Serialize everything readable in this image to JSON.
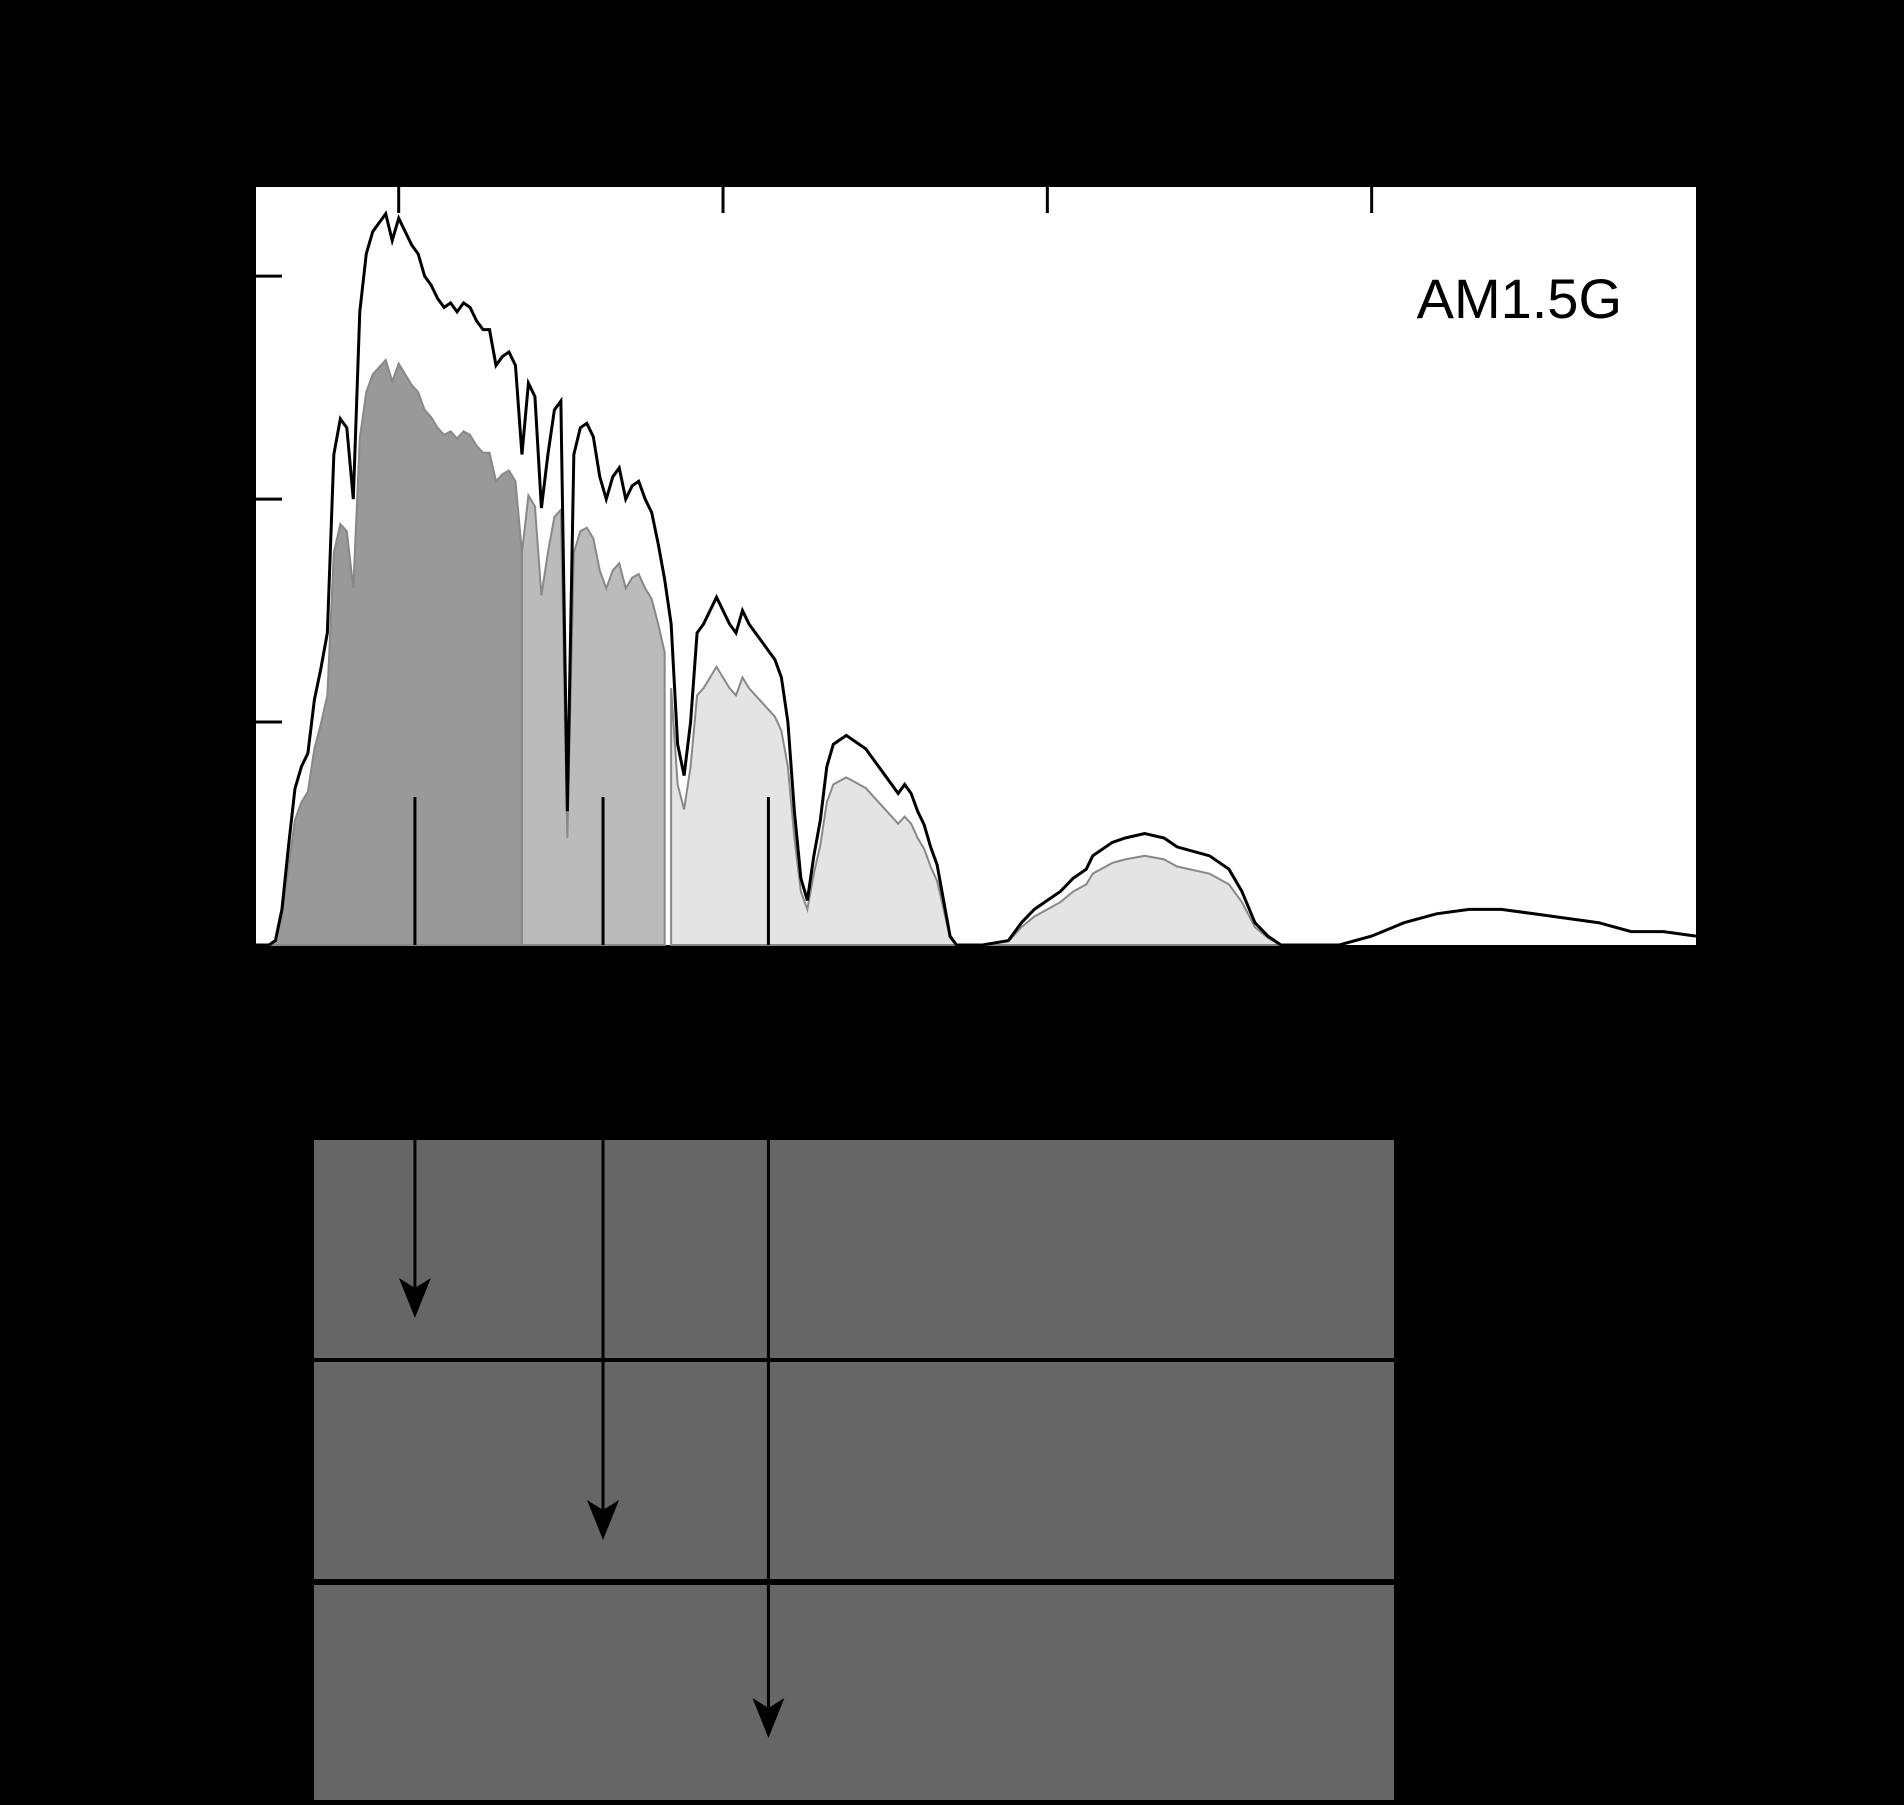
{
  "chart_data": {
    "type": "area",
    "title": "",
    "xlabel": "",
    "ylabel": "",
    "xlim": [
      280,
      2500
    ],
    "ylim": [
      0,
      1.7
    ],
    "grid": false,
    "annotation": "AM1.5G",
    "x_ticks": [
      500,
      1000,
      1500,
      2000
    ],
    "y_ticks": [
      0.5,
      1.0,
      1.5
    ],
    "spectrum": {
      "name": "AM1.5G",
      "points": [
        [
          280,
          0.0
        ],
        [
          300,
          0.0
        ],
        [
          310,
          0.01
        ],
        [
          320,
          0.08
        ],
        [
          330,
          0.22
        ],
        [
          340,
          0.35
        ],
        [
          350,
          0.4
        ],
        [
          360,
          0.43
        ],
        [
          370,
          0.55
        ],
        [
          380,
          0.62
        ],
        [
          390,
          0.7
        ],
        [
          400,
          1.1
        ],
        [
          410,
          1.18
        ],
        [
          420,
          1.16
        ],
        [
          430,
          1.0
        ],
        [
          440,
          1.42
        ],
        [
          450,
          1.55
        ],
        [
          460,
          1.6
        ],
        [
          470,
          1.62
        ],
        [
          480,
          1.64
        ],
        [
          490,
          1.58
        ],
        [
          500,
          1.63
        ],
        [
          510,
          1.6
        ],
        [
          520,
          1.57
        ],
        [
          530,
          1.55
        ],
        [
          540,
          1.5
        ],
        [
          550,
          1.48
        ],
        [
          560,
          1.45
        ],
        [
          570,
          1.43
        ],
        [
          580,
          1.44
        ],
        [
          590,
          1.42
        ],
        [
          600,
          1.44
        ],
        [
          610,
          1.43
        ],
        [
          620,
          1.4
        ],
        [
          630,
          1.38
        ],
        [
          640,
          1.38
        ],
        [
          650,
          1.3
        ],
        [
          660,
          1.32
        ],
        [
          670,
          1.33
        ],
        [
          680,
          1.3
        ],
        [
          690,
          1.1
        ],
        [
          700,
          1.26
        ],
        [
          710,
          1.23
        ],
        [
          720,
          0.98
        ],
        [
          730,
          1.1
        ],
        [
          740,
          1.2
        ],
        [
          750,
          1.22
        ],
        [
          760,
          0.3
        ],
        [
          770,
          1.1
        ],
        [
          780,
          1.16
        ],
        [
          790,
          1.17
        ],
        [
          800,
          1.14
        ],
        [
          810,
          1.05
        ],
        [
          820,
          1.0
        ],
        [
          830,
          1.05
        ],
        [
          840,
          1.07
        ],
        [
          850,
          1.0
        ],
        [
          860,
          1.03
        ],
        [
          870,
          1.04
        ],
        [
          880,
          1.0
        ],
        [
          890,
          0.97
        ],
        [
          900,
          0.9
        ],
        [
          910,
          0.82
        ],
        [
          920,
          0.72
        ],
        [
          930,
          0.45
        ],
        [
          940,
          0.38
        ],
        [
          950,
          0.5
        ],
        [
          960,
          0.7
        ],
        [
          970,
          0.72
        ],
        [
          980,
          0.75
        ],
        [
          990,
          0.78
        ],
        [
          1000,
          0.75
        ],
        [
          1010,
          0.72
        ],
        [
          1020,
          0.7
        ],
        [
          1030,
          0.75
        ],
        [
          1040,
          0.72
        ],
        [
          1050,
          0.7
        ],
        [
          1060,
          0.68
        ],
        [
          1070,
          0.66
        ],
        [
          1080,
          0.64
        ],
        [
          1090,
          0.6
        ],
        [
          1100,
          0.5
        ],
        [
          1110,
          0.3
        ],
        [
          1120,
          0.15
        ],
        [
          1130,
          0.1
        ],
        [
          1140,
          0.2
        ],
        [
          1150,
          0.28
        ],
        [
          1160,
          0.4
        ],
        [
          1170,
          0.45
        ],
        [
          1180,
          0.46
        ],
        [
          1190,
          0.47
        ],
        [
          1200,
          0.46
        ],
        [
          1210,
          0.45
        ],
        [
          1220,
          0.44
        ],
        [
          1230,
          0.42
        ],
        [
          1240,
          0.4
        ],
        [
          1250,
          0.38
        ],
        [
          1260,
          0.36
        ],
        [
          1270,
          0.34
        ],
        [
          1280,
          0.36
        ],
        [
          1290,
          0.34
        ],
        [
          1300,
          0.3
        ],
        [
          1310,
          0.27
        ],
        [
          1320,
          0.22
        ],
        [
          1330,
          0.18
        ],
        [
          1340,
          0.1
        ],
        [
          1350,
          0.02
        ],
        [
          1360,
          0.0
        ],
        [
          1400,
          0.0
        ],
        [
          1440,
          0.01
        ],
        [
          1460,
          0.05
        ],
        [
          1480,
          0.08
        ],
        [
          1500,
          0.1
        ],
        [
          1520,
          0.12
        ],
        [
          1540,
          0.15
        ],
        [
          1560,
          0.17
        ],
        [
          1570,
          0.2
        ],
        [
          1600,
          0.23
        ],
        [
          1620,
          0.24
        ],
        [
          1650,
          0.25
        ],
        [
          1680,
          0.24
        ],
        [
          1700,
          0.22
        ],
        [
          1750,
          0.2
        ],
        [
          1780,
          0.17
        ],
        [
          1800,
          0.12
        ],
        [
          1820,
          0.05
        ],
        [
          1840,
          0.02
        ],
        [
          1860,
          0.0
        ],
        [
          1950,
          0.0
        ],
        [
          2000,
          0.02
        ],
        [
          2050,
          0.05
        ],
        [
          2100,
          0.07
        ],
        [
          2150,
          0.08
        ],
        [
          2200,
          0.08
        ],
        [
          2250,
          0.07
        ],
        [
          2300,
          0.06
        ],
        [
          2350,
          0.05
        ],
        [
          2400,
          0.03
        ],
        [
          2450,
          0.03
        ],
        [
          2500,
          0.02
        ]
      ]
    },
    "bands": [
      {
        "range": [
          300,
          690
        ],
        "shade": "#999999",
        "factor": 0.8
      },
      {
        "range": [
          690,
          915
        ],
        "shade": "#bbbbbb",
        "factor": 0.8
      },
      {
        "range": [
          915,
          1860
        ],
        "shade": "#e4e4e4",
        "factor": 0.8
      }
    ],
    "marker_x": [
      525,
      815,
      1070
    ]
  },
  "colors": {
    "background": "#000000",
    "plot_background": "#ffffff",
    "spectrum_line": "#000000",
    "layer_fill": "#666666",
    "layer_border": "#000000"
  }
}
